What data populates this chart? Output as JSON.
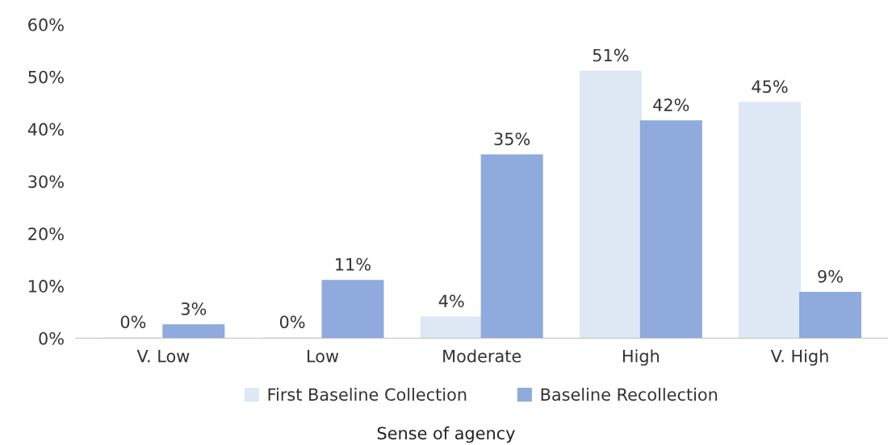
{
  "chart_data": {
    "type": "bar",
    "xlabel": "Sense of agency",
    "categories": [
      "V. Low",
      "Low",
      "Moderate",
      "High",
      "V. High"
    ],
    "series": [
      {
        "name": "First Baseline Collection",
        "color": "#dee8f4",
        "values": [
          0,
          0,
          4,
          51,
          45
        ],
        "value_labels": [
          "0%",
          "0%",
          "4%",
          "51%",
          "45%"
        ]
      },
      {
        "name": "Baseline Recollection",
        "color": "#8faadc",
        "values": [
          2.5,
          11,
          35,
          41.5,
          8.7
        ],
        "value_labels": [
          "3%",
          "11%",
          "35%",
          "42%",
          "9%"
        ]
      }
    ],
    "ylim": [
      0,
      60
    ],
    "yticks": [
      {
        "value": 0,
        "label": "0%"
      },
      {
        "value": 10,
        "label": "10%"
      },
      {
        "value": 20,
        "label": "20%"
      },
      {
        "value": 30,
        "label": "30%"
      },
      {
        "value": 40,
        "label": "40%"
      },
      {
        "value": 50,
        "label": "50%"
      },
      {
        "value": 60,
        "label": "60%"
      }
    ],
    "grid": false,
    "legend": "bottom"
  }
}
